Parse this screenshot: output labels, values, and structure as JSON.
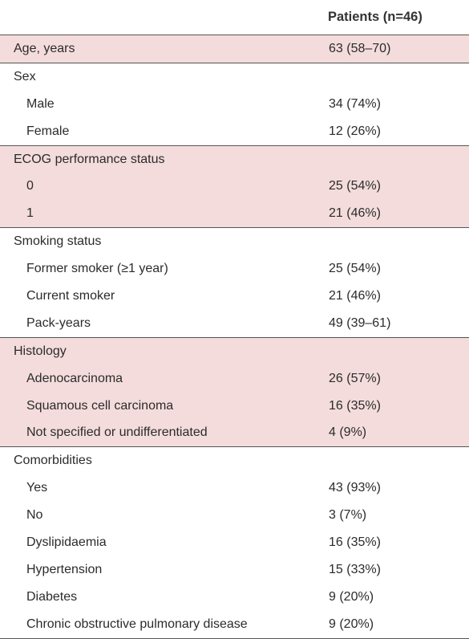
{
  "header": {
    "column_label": "",
    "patients_label": "Patients (n=46)"
  },
  "groups": [
    {
      "shade": "pink",
      "rows": [
        {
          "label": "Age, years",
          "value": "63 (58–70)",
          "indent": false
        }
      ]
    },
    {
      "shade": "white",
      "rows": [
        {
          "label": "Sex",
          "value": "",
          "indent": false
        },
        {
          "label": "Male",
          "value": "34 (74%)",
          "indent": true
        },
        {
          "label": "Female",
          "value": "12 (26%)",
          "indent": true
        }
      ]
    },
    {
      "shade": "pink",
      "rows": [
        {
          "label": "ECOG performance status",
          "value": "",
          "indent": false
        },
        {
          "label": "0",
          "value": "25 (54%)",
          "indent": true
        },
        {
          "label": "1",
          "value": "21 (46%)",
          "indent": true
        }
      ]
    },
    {
      "shade": "white",
      "rows": [
        {
          "label": "Smoking status",
          "value": "",
          "indent": false
        },
        {
          "label": "Former smoker (≥1 year)",
          "value": "25 (54%)",
          "indent": true
        },
        {
          "label": "Current smoker",
          "value": "21 (46%)",
          "indent": true
        },
        {
          "label": "Pack-years",
          "value": "49 (39–61)",
          "indent": true
        }
      ]
    },
    {
      "shade": "pink",
      "rows": [
        {
          "label": "Histology",
          "value": "",
          "indent": false
        },
        {
          "label": "Adenocarcinoma",
          "value": "26 (57%)",
          "indent": true
        },
        {
          "label": "Squamous cell carcinoma",
          "value": "16 (35%)",
          "indent": true
        },
        {
          "label": "Not specified or undifferentiated",
          "value": "4 (9%)",
          "indent": true
        }
      ]
    },
    {
      "shade": "white",
      "rows": [
        {
          "label": "Comorbidities",
          "value": "",
          "indent": false
        },
        {
          "label": "Yes",
          "value": "43 (93%)",
          "indent": true
        },
        {
          "label": "No",
          "value": "3 (7%)",
          "indent": true
        },
        {
          "label": "Dyslipidaemia",
          "value": "16 (35%)",
          "indent": true
        },
        {
          "label": "Hypertension",
          "value": "15 (33%)",
          "indent": true
        },
        {
          "label": "Diabetes",
          "value": "9 (20%)",
          "indent": true
        },
        {
          "label": "Chronic obstructive pulmonary disease",
          "value": "9 (20%)",
          "indent": true
        }
      ]
    }
  ],
  "colors": {
    "shaded_row_background": "#f4dcdc",
    "rule_color": "#555555",
    "text_color": "#2b2b2b"
  }
}
